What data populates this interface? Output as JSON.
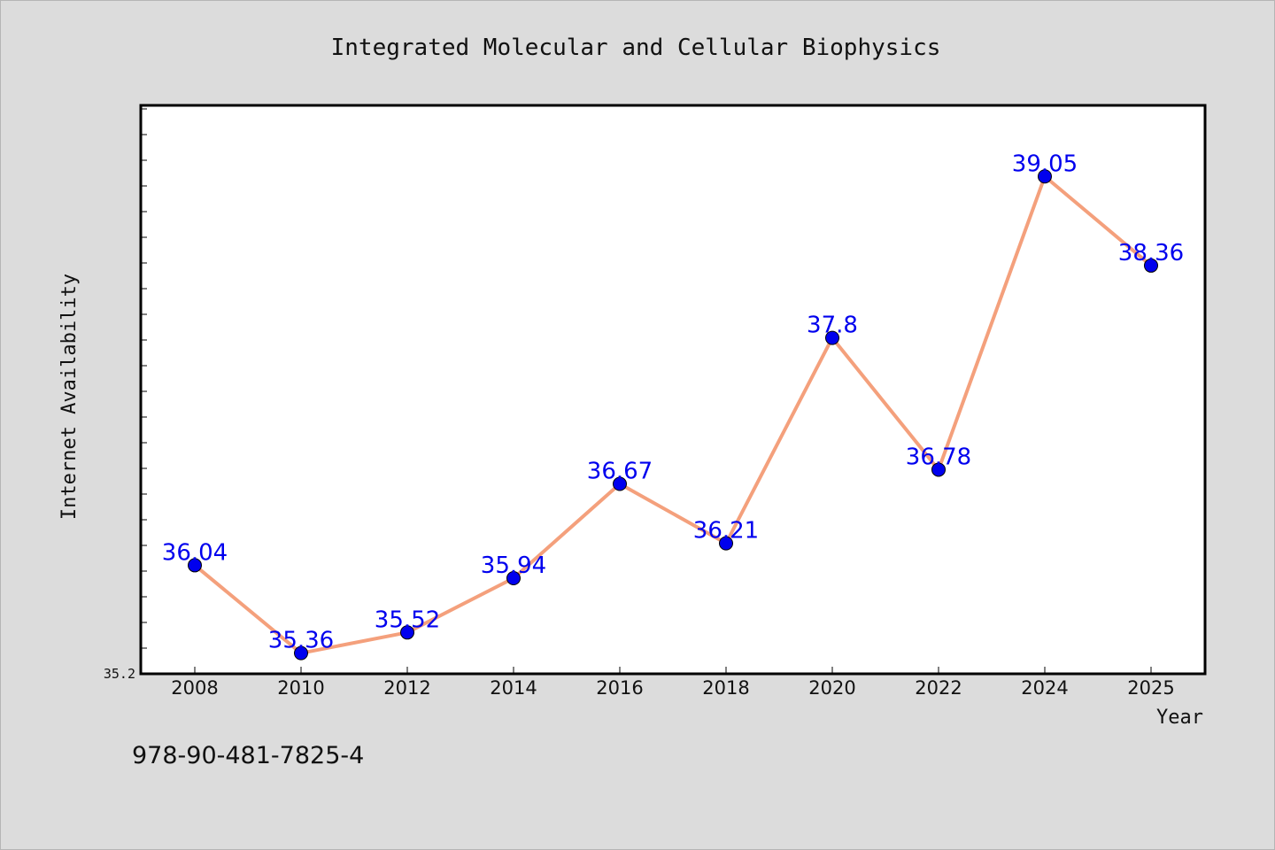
{
  "chart_data": {
    "type": "line",
    "title": "Integrated Molecular and Cellular Biophysics",
    "xlabel": "Year",
    "ylabel": "Internet Availability",
    "categories": [
      "2008",
      "2010",
      "2012",
      "2014",
      "2016",
      "2018",
      "2020",
      "2022",
      "2024",
      "2025"
    ],
    "values": [
      36.04,
      35.36,
      35.52,
      35.94,
      36.67,
      36.21,
      37.8,
      36.78,
      39.05,
      38.36
    ],
    "data_labels": [
      "36.04",
      "35.36",
      "35.52",
      "35.94",
      "36.67",
      "36.21",
      "37.8",
      "36.78",
      "39.05",
      "38.36"
    ],
    "ytick_labels": [
      "35.2"
    ],
    "ylim": [
      35.2,
      39.6
    ],
    "grid": false,
    "legend": "none",
    "colors": {
      "line": "#f4a07c",
      "marker": "#0000ee",
      "label": "#0000ee",
      "plot_bg": "#ffffff",
      "page_bg": "#dcdcdc"
    }
  },
  "footer": {
    "isbn": "978-90-481-7825-4"
  }
}
